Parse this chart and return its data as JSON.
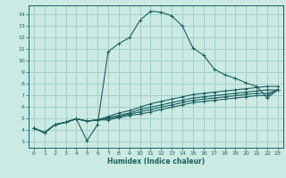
{
  "xlabel": "Humidex (Indice chaleur)",
  "bg_color": "#cceae4",
  "grid_color": "#99ccc4",
  "line_color": "#1a6060",
  "xlim": [
    -0.5,
    23.5
  ],
  "ylim": [
    2.5,
    14.8
  ],
  "xticks": [
    0,
    1,
    2,
    3,
    4,
    5,
    6,
    7,
    8,
    9,
    10,
    11,
    12,
    13,
    14,
    15,
    16,
    17,
    18,
    19,
    20,
    21,
    22,
    23
  ],
  "yticks": [
    3,
    4,
    5,
    6,
    7,
    8,
    9,
    10,
    11,
    12,
    13,
    14
  ],
  "curves": [
    [
      4.2,
      3.8,
      4.5,
      4.7,
      5.0,
      3.1,
      4.5,
      10.8,
      11.5,
      12.0,
      13.5,
      14.3,
      14.2,
      13.9,
      13.0,
      11.1,
      10.5,
      9.3,
      8.8,
      8.5,
      8.1,
      7.8,
      6.8,
      7.5
    ],
    [
      4.2,
      3.8,
      4.5,
      4.7,
      5.0,
      4.8,
      4.9,
      5.2,
      5.5,
      5.7,
      6.0,
      6.3,
      6.5,
      6.7,
      6.9,
      7.1,
      7.2,
      7.3,
      7.4,
      7.5,
      7.6,
      7.7,
      7.8,
      7.8
    ],
    [
      4.2,
      3.8,
      4.5,
      4.7,
      5.0,
      4.8,
      4.9,
      5.1,
      5.3,
      5.5,
      5.8,
      6.0,
      6.2,
      6.4,
      6.6,
      6.8,
      6.9,
      7.0,
      7.1,
      7.2,
      7.3,
      7.4,
      7.5,
      7.5
    ],
    [
      4.2,
      3.8,
      4.5,
      4.7,
      5.0,
      4.8,
      4.9,
      5.0,
      5.2,
      5.4,
      5.6,
      5.8,
      6.0,
      6.2,
      6.4,
      6.6,
      6.7,
      6.8,
      6.9,
      7.0,
      7.1,
      7.2,
      7.2,
      7.5
    ],
    [
      4.2,
      3.8,
      4.5,
      4.7,
      5.0,
      4.8,
      4.9,
      4.9,
      5.1,
      5.3,
      5.4,
      5.6,
      5.8,
      6.0,
      6.2,
      6.4,
      6.5,
      6.6,
      6.7,
      6.8,
      6.9,
      7.0,
      7.0,
      7.5
    ]
  ]
}
